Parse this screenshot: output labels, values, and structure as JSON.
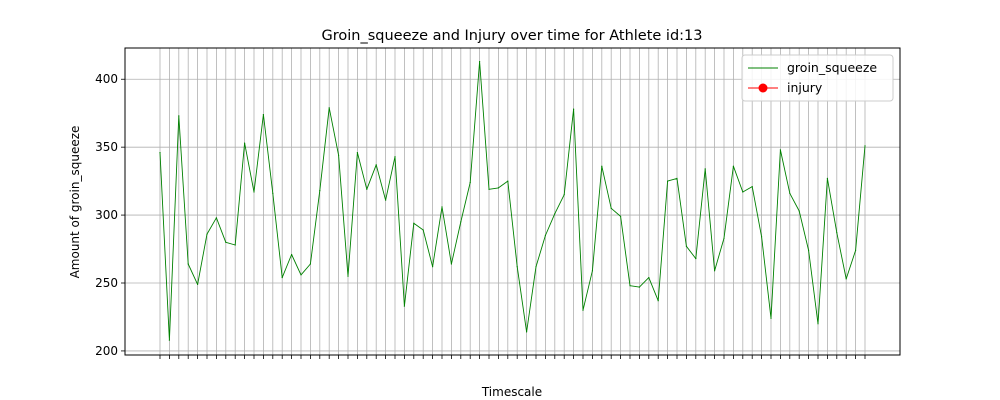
{
  "chart_data": {
    "type": "line",
    "title": "Groin_squeeze and Injury over time for Athlete id:13",
    "xlabel": "Timescale",
    "ylabel": "Amount of groin_squeeze",
    "ylim": [
      197,
      423
    ],
    "yticks": [
      200,
      250,
      300,
      350,
      400
    ],
    "grid": true,
    "legend_position": "top-right",
    "x_tick_labels": "overlapping date labels (illegible)",
    "series": [
      {
        "name": "groin_squeeze",
        "color": "#008000",
        "values": [
          346,
          208,
          373,
          264,
          249,
          286,
          298,
          280,
          278,
          353,
          317,
          374,
          316,
          254,
          271,
          256,
          264,
          318,
          379,
          344,
          255,
          346,
          319,
          337,
          311,
          343,
          233,
          294,
          289,
          262,
          306,
          264,
          295,
          324,
          413,
          319,
          320,
          325,
          262,
          214,
          262,
          285,
          301,
          315,
          378,
          230,
          259,
          336,
          305,
          299,
          248,
          247,
          254,
          237,
          325,
          327,
          277,
          268,
          334,
          259,
          283,
          336,
          317,
          321,
          284,
          224,
          348,
          316,
          303,
          274,
          220,
          327,
          287,
          253,
          274,
          351
        ]
      },
      {
        "name": "injury",
        "color": "#ff0000",
        "values": []
      }
    ]
  }
}
